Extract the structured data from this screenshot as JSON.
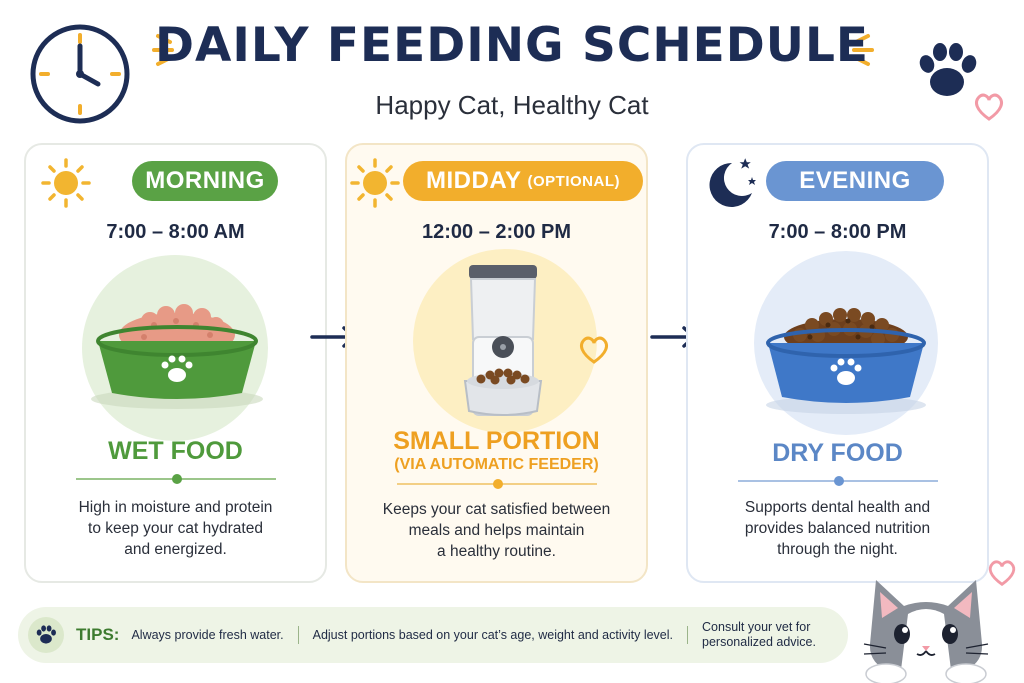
{
  "header": {
    "title": "DAILY FEEDING SCHEDULE",
    "subtitle": "Happy Cat, Healthy Cat"
  },
  "colors": {
    "navy": "#1d2d55",
    "morning": "#5aa245",
    "midday": "#f2ae2c",
    "evening": "#6a95d2"
  },
  "cards": [
    {
      "label": "MORNING",
      "time": "7:00 – 8:00 AM",
      "icon": "sun-icon",
      "food": "WET FOOD",
      "description": [
        "High in moisture and protein",
        "to keep your cat hydrated",
        "and energized."
      ]
    },
    {
      "label": "MIDDAY",
      "label_note": "(OPTIONAL)",
      "time": "12:00 – 2:00 PM",
      "icon": "sun-icon",
      "food": "SMALL PORTION",
      "food_note": "(VIA AUTOMATIC FEEDER)",
      "description": [
        "Keeps your cat satisfied between",
        "meals and helps maintain",
        "a healthy routine."
      ]
    },
    {
      "label": "EVENING",
      "time": "7:00 – 8:00 PM",
      "icon": "moon-icon",
      "food": "DRY FOOD",
      "description": [
        "Supports dental health and",
        "provides balanced nutrition",
        "through the night."
      ]
    }
  ],
  "tips": {
    "label": "TIPS:",
    "items": [
      "Always provide fresh water.",
      "Adjust portions based on your cat’s age, weight and activity level.",
      "Consult your vet for personalized advice."
    ]
  }
}
